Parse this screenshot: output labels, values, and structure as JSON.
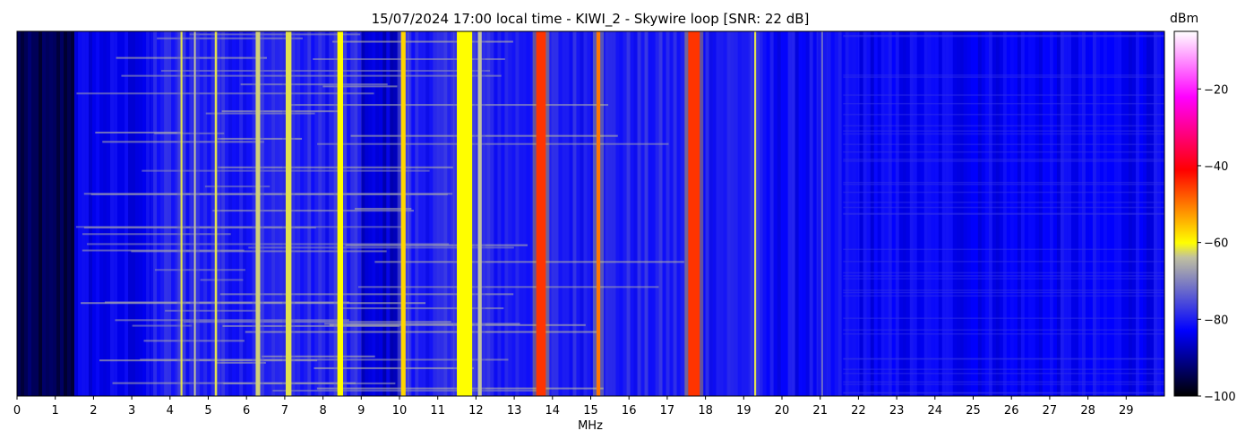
{
  "chart_data": {
    "type": "heatmap",
    "title": "15/07/2024 17:00 local time - KIWI_2 - Skywire loop [SNR: 22 dB]",
    "xlabel": "MHz",
    "ylabel": "",
    "xlim": [
      0,
      30
    ],
    "x_ticks": [
      "0",
      "1",
      "2",
      "3",
      "4",
      "5",
      "6",
      "7",
      "8",
      "9",
      "10",
      "11",
      "12",
      "13",
      "14",
      "15",
      "16",
      "17",
      "18",
      "19",
      "20",
      "21",
      "22",
      "23",
      "24",
      "25",
      "26",
      "27",
      "28",
      "29"
    ],
    "colorbar": {
      "label": "dBm",
      "range": [
        -100,
        -5
      ],
      "ticks": [
        "−20",
        "−40",
        "−60",
        "−80",
        "−100"
      ],
      "tick_values": [
        -20,
        -40,
        -60,
        -80,
        -100
      ],
      "colormap": [
        "#000000",
        "#0000ff",
        "#c0c0a0",
        "#ffff00",
        "#ff0000",
        "#ff00ff",
        "#ffffff"
      ]
    },
    "background_levels_dbm": [
      {
        "from_mhz": 0,
        "to_mhz": 1.5,
        "level": -95
      },
      {
        "from_mhz": 1.5,
        "to_mhz": 3.5,
        "level": -84
      },
      {
        "from_mhz": 3.5,
        "to_mhz": 9,
        "level": -80
      },
      {
        "from_mhz": 9,
        "to_mhz": 10,
        "level": -86
      },
      {
        "from_mhz": 10,
        "to_mhz": 19.3,
        "level": -80
      },
      {
        "from_mhz": 19.3,
        "to_mhz": 22,
        "level": -82
      },
      {
        "from_mhz": 22,
        "to_mhz": 30,
        "level": -83
      }
    ],
    "signal_bands": [
      {
        "center_mhz": 4.3,
        "width_mhz": 0.05,
        "level_dbm": -62
      },
      {
        "center_mhz": 4.65,
        "width_mhz": 0.05,
        "level_dbm": -64
      },
      {
        "center_mhz": 5.2,
        "width_mhz": 0.06,
        "level_dbm": -62
      },
      {
        "center_mhz": 6.3,
        "width_mhz": 0.12,
        "level_dbm": -63
      },
      {
        "center_mhz": 7.1,
        "width_mhz": 0.15,
        "level_dbm": -62
      },
      {
        "center_mhz": 8.45,
        "width_mhz": 0.15,
        "level_dbm": -60
      },
      {
        "center_mhz": 10.1,
        "width_mhz": 0.12,
        "level_dbm": -57
      },
      {
        "center_mhz": 11.7,
        "width_mhz": 0.4,
        "level_dbm": -60
      },
      {
        "center_mhz": 12.1,
        "width_mhz": 0.1,
        "level_dbm": -64
      },
      {
        "center_mhz": 13.7,
        "width_mhz": 0.25,
        "level_dbm": -45
      },
      {
        "center_mhz": 15.2,
        "width_mhz": 0.1,
        "level_dbm": -50
      },
      {
        "center_mhz": 17.7,
        "width_mhz": 0.3,
        "level_dbm": -45
      },
      {
        "center_mhz": 19.3,
        "width_mhz": 0.05,
        "level_dbm": -62
      },
      {
        "center_mhz": 21.05,
        "width_mhz": 0.05,
        "level_dbm": -72
      }
    ],
    "grid": false
  }
}
